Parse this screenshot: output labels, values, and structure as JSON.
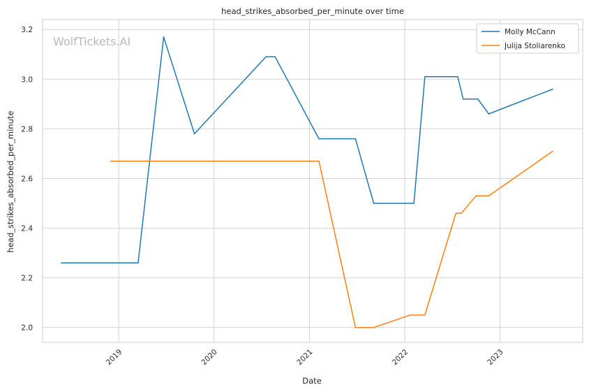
{
  "chart_data": {
    "type": "line",
    "title": "head_strikes_absorbed_per_minute over time",
    "xlabel": "Date",
    "ylabel": "head_strikes_absorbed_per_minute",
    "watermark": "WolfTickets.AI",
    "x_ticks": [
      "2019",
      "2020",
      "2021",
      "2022",
      "2023"
    ],
    "y_ticks": [
      "2.0",
      "2.2",
      "2.4",
      "2.6",
      "2.8",
      "3.0",
      "3.2"
    ],
    "xlim": [
      "2018-03-15",
      "2023-11-14"
    ],
    "ylim": [
      1.94,
      3.24
    ],
    "grid": true,
    "legend_position": "top-right",
    "series": [
      {
        "name": "Molly McCann",
        "color": "#1f77b4",
        "points": [
          [
            "2018-05-26",
            2.26
          ],
          [
            "2019-03-16",
            2.26
          ],
          [
            "2019-06-22",
            3.17
          ],
          [
            "2019-10-18",
            2.78
          ],
          [
            "2020-07-18",
            3.09
          ],
          [
            "2020-08-22",
            3.09
          ],
          [
            "2021-02-06",
            2.76
          ],
          [
            "2021-06-26",
            2.76
          ],
          [
            "2021-09-04",
            2.5
          ],
          [
            "2022-02-05",
            2.5
          ],
          [
            "2022-03-19",
            3.01
          ],
          [
            "2022-07-23",
            3.01
          ],
          [
            "2022-08-13",
            2.92
          ],
          [
            "2022-10-08",
            2.92
          ],
          [
            "2022-11-19",
            2.86
          ],
          [
            "2023-07-22",
            2.96
          ]
        ]
      },
      {
        "name": "Julija Stoliarenko",
        "color": "#ff7f0e",
        "points": [
          [
            "2018-12-01",
            2.67
          ],
          [
            "2021-02-06",
            2.67
          ],
          [
            "2021-06-26",
            2.0
          ],
          [
            "2021-09-04",
            2.0
          ],
          [
            "2022-01-22",
            2.05
          ],
          [
            "2022-03-19",
            2.05
          ],
          [
            "2022-07-16",
            2.46
          ],
          [
            "2022-08-06",
            2.46
          ],
          [
            "2022-10-01",
            2.53
          ],
          [
            "2022-11-19",
            2.53
          ],
          [
            "2023-07-22",
            2.71
          ]
        ]
      }
    ]
  }
}
